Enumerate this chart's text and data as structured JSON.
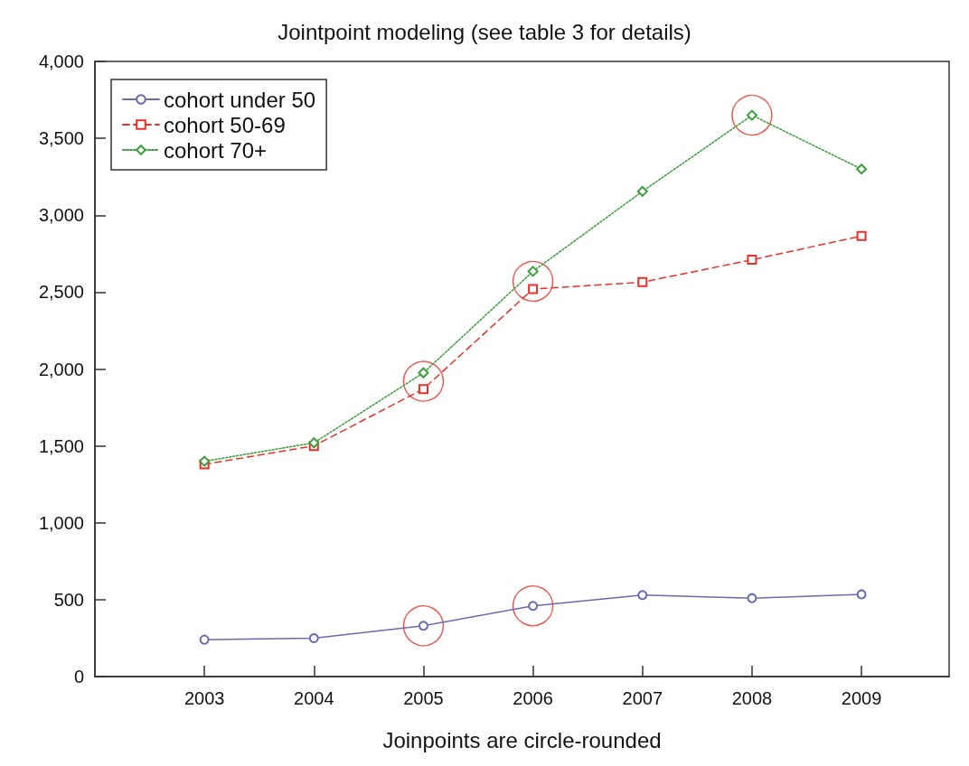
{
  "chart_data": {
    "type": "line",
    "title": "Jointpoint modeling (see table 3 for details)",
    "xlabel": "Joinpoints are circle-rounded",
    "x": [
      2003,
      2004,
      2005,
      2006,
      2007,
      2008,
      2009
    ],
    "xlim": [
      2002,
      2009.8
    ],
    "xticks": [
      2003,
      2004,
      2005,
      2006,
      2007,
      2008,
      2009
    ],
    "ylim": [
      0,
      4000
    ],
    "yticks": [
      {
        "value": 0,
        "label": "0"
      },
      {
        "value": 500,
        "label": "500"
      },
      {
        "value": 1000,
        "label": "1,000"
      },
      {
        "value": 1500,
        "label": "1,500"
      },
      {
        "value": 2000,
        "label": "2,000"
      },
      {
        "value": 2500,
        "label": "2,500"
      },
      {
        "value": 3000,
        "label": "3,000"
      },
      {
        "value": 3500,
        "label": "3,500"
      },
      {
        "value": 4000,
        "label": "4,000"
      }
    ],
    "grid": false,
    "legend": "top left",
    "series": [
      {
        "name": "cohort under 50",
        "color": "#6a6ab0",
        "marker": "circle",
        "line_style": "solid",
        "values": [
          240,
          250,
          330,
          460,
          530,
          510,
          535
        ]
      },
      {
        "name": "cohort 50-69",
        "color": "#e8302a",
        "marker": "square",
        "line_style": "dashed",
        "values": [
          1380,
          1500,
          1870,
          2520,
          2565,
          2710,
          2865
        ]
      },
      {
        "name": "cohort 70+",
        "color": "#3a9e3a",
        "marker": "diamond",
        "line_style": "dotted",
        "values": [
          1400,
          1520,
          1975,
          2635,
          3155,
          3650,
          3300
        ]
      },
      {
        "type": "scatter",
        "color": "#e8302a",
        "marker": "circle",
        "x": [
          2005,
          2006,
          2008,
          2005,
          2006
        ],
        "values": [
          1920,
          2570,
          3650,
          330,
          460
        ]
      }
    ]
  }
}
